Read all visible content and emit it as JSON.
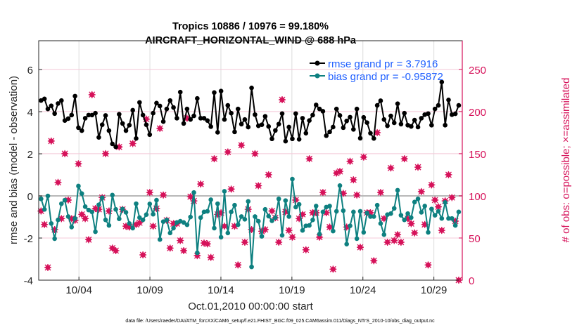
{
  "chart_data": {
    "type": "line",
    "title": "Tropics 10886 / 10976 = 99.180%",
    "subtitle": "AIRCRAFT_HORIZONTAL_WIND @ 688 hPa",
    "xlabel": "Oct.01,2010 00:00:00 start",
    "ylabel": "rmse and bias (model - observation)",
    "ylabel_right": "# of obs: o=possible; ×=assimilated",
    "footnote": "data file: /Users/raeder/DAI/ATM_forcXX/CAM6_setup/f.e21.FHIST_BGC.f09_025.CAM6assim.011/Diags_NTrS_2010-10/obs_diag_output.nc",
    "xlim": [
      "2010-10-01 04:00",
      "2010-10-31 00:00"
    ],
    "first_time": "2010-10-01 08:00",
    "last_time": "2010-10-30 18:00",
    "xticks": [
      "10/04",
      "10/09",
      "10/14",
      "10/19",
      "10/24",
      "10/29"
    ],
    "xtick_days": [
      4,
      9,
      14,
      19,
      24,
      29
    ],
    "ylim": [
      -4,
      7.37
    ],
    "yticks": [
      -4,
      -2,
      0,
      2,
      4,
      6
    ],
    "ylim_right": [
      0,
      284
    ],
    "yticks_right": [
      0,
      50,
      100,
      150,
      200,
      250
    ],
    "grid": true,
    "legend_placement": "top-right",
    "colors": {
      "rmse": "#000000",
      "bias": "#0e8080",
      "nobs": "#d6125a",
      "legend_text": "#1f5fff",
      "zero_line": "#b8b8b8",
      "grid_v": "#dcdcdc",
      "grid_h": "#f4c8d8"
    },
    "series": [
      {
        "name": "rmse grand pr = 3.7916",
        "key": "rmse",
        "values": [
          4.53,
          4.61,
          4.13,
          4.28,
          3.91,
          4.39,
          4.53,
          3.58,
          3.67,
          3.84,
          4.74,
          3.24,
          3.1,
          3.69,
          3.84,
          3.84,
          3.93,
          2.78,
          3.38,
          3.82,
          3.1,
          2.47,
          2.33,
          3.88,
          3.44,
          3.1,
          3.36,
          4.07,
          2.73,
          4.44,
          3.84,
          3.38,
          2.91,
          3.93,
          4.41,
          4.27,
          3.53,
          4.13,
          4.53,
          4.2,
          3.69,
          4.93,
          3.44,
          4.13,
          3.63,
          3.8,
          4.63,
          3.69,
          3.69,
          3.58,
          3.29,
          4.91,
          3.02,
          4.98,
          3.63,
          4.3,
          3.93,
          3.04,
          4.13,
          3.41,
          3.63,
          3.27,
          5.13,
          3.86,
          3.33,
          3.38,
          3.78,
          3.3,
          2.71,
          3.11,
          3.41,
          3.91,
          2.6,
          3.27,
          2.71,
          3.91,
          2.69,
          3.69,
          2.98,
          3.58,
          3.84,
          4.32,
          4.13,
          4.02,
          2.86,
          3.04,
          3.27,
          4.13,
          3.82,
          3.24,
          3.56,
          3.74,
          3.16,
          4.13,
          2.74,
          3.73,
          3.48,
          2.98,
          2.73,
          4.3,
          4.52,
          3.63,
          3.33,
          3.8,
          3.47,
          4.38,
          3.41,
          3.93,
          3.36,
          3.3,
          3.6,
          3.27,
          3.69,
          3.86,
          3.91,
          3.36,
          4.13,
          4.3,
          5.41,
          3.36,
          4.56,
          3.86,
          3.9,
          4.3
        ]
      },
      {
        "name": "bias grand pr = -0.95872",
        "key": "bias",
        "values": [
          -0.14,
          -0.64,
          0,
          -1.31,
          -2.03,
          -1.14,
          -0.37,
          -0.2,
          -0.98,
          -1.48,
          -1.07,
          0.47,
          0.11,
          -0.51,
          -0.67,
          -0.76,
          -1.7,
          -0.42,
          -0.09,
          -1.14,
          -1.4,
          0.04,
          -0.64,
          -1.09,
          -0.62,
          -0.78,
          -1.31,
          -1.53,
          -0.37,
          -1.03,
          -1.14,
          -0.89,
          -0.38,
          -0.87,
          -0.2,
          -2.07,
          -1.22,
          -1.14,
          -1.76,
          -1.53,
          -1.26,
          -1.2,
          -1.26,
          -1.37,
          -1,
          0.16,
          -2.7,
          -1.03,
          -0.76,
          -0.73,
          -0.18,
          -1.53,
          -0.37,
          -1.96,
          0.22,
          -1.76,
          -0.76,
          -0.44,
          -1.37,
          -0.98,
          -1.11,
          -0.26,
          -3.37,
          -0.98,
          -1.2,
          -1.92,
          -0.64,
          -0.96,
          -1.18,
          -1.03,
          -0.14,
          -1.87,
          -0.22,
          -0.98,
          0.8,
          -0.53,
          -0.4,
          -1.64,
          -1.42,
          -1.4,
          -1.14,
          -0.48,
          -1.81,
          -0.76,
          -0.53,
          -0.48,
          -1.67,
          -0.73,
          0.49,
          -0.7,
          -2.29,
          -1.42,
          -0.76,
          -2.03,
          -0.73,
          -1.73,
          -0.81,
          -0.98,
          -0.98,
          -0.44,
          -1.31,
          -1.84,
          -0.89,
          -0.84,
          -0.59,
          0.27,
          -0.92,
          -1.14,
          -0.84,
          -1.03,
          -0.29,
          -0.14,
          -0.78,
          -0.48,
          -1.73,
          -0.62,
          -0.92,
          -0.73,
          -1.07,
          -0.31,
          -1.07,
          -1.07,
          -1.4,
          -0.76
        ]
      },
      {
        "key": "nobs",
        "axis": "right",
        "values": [
          82,
          66,
          15,
          165,
          60,
          116,
          73,
          150,
          95,
          73,
          71,
          138,
          78,
          73,
          48,
          220,
          85,
          84,
          98,
          150,
          82,
          38,
          35,
          158,
          84,
          64,
          63,
          162,
          66,
          68,
          30,
          191,
          104,
          64,
          85,
          180,
          101,
          71,
          38,
          67,
          67,
          47,
          35,
          192,
          99,
          94,
          29,
          114,
          44,
          43,
          27,
          144,
          78,
          80,
          64,
          152,
          108,
          64,
          18,
          160,
          45,
          84,
          60,
          150,
          112,
          58,
          60,
          125,
          82,
          74,
          45,
          214,
          81,
          59,
          51,
          95,
          73,
          78,
          36,
          144,
          80,
          80,
          51,
          104,
          80,
          63,
          13,
          127,
          129,
          103,
          63,
          141,
          119,
          101,
          39,
          146,
          80,
          80,
          23,
          175,
          104,
          73,
          45,
          133,
          47,
          54,
          45,
          144,
          73,
          67,
          56,
          134,
          105,
          66,
          18,
          113,
          95,
          87,
          59,
          94,
          125,
          98,
          70,
          0
        ]
      }
    ]
  }
}
